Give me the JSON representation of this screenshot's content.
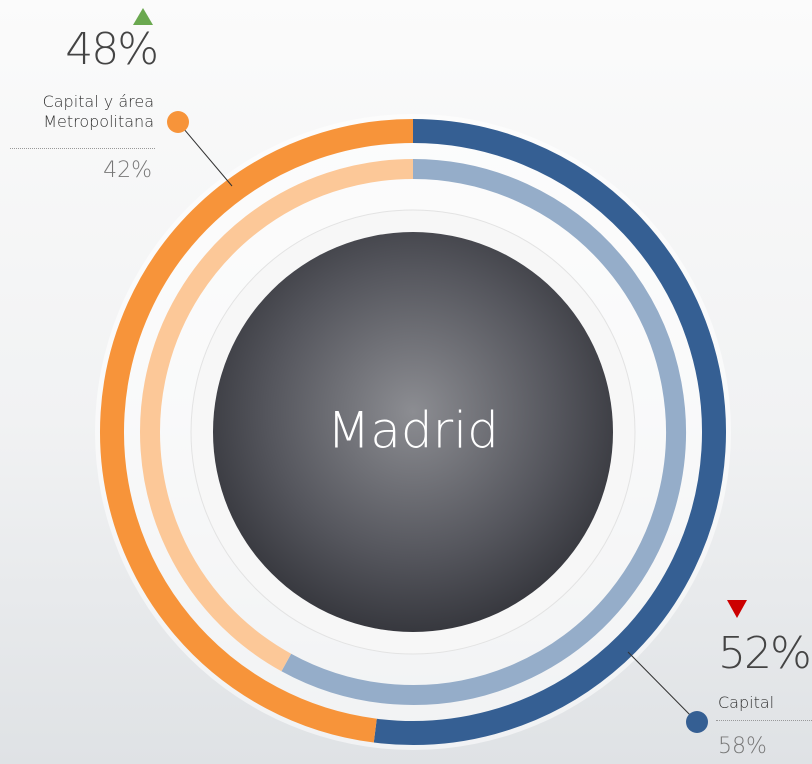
{
  "chart_data": {
    "type": "donut",
    "title": "Madrid",
    "categories": [
      "Capital",
      "Capital y área Metropolitana"
    ],
    "colors": [
      "#355f93",
      "#f7943a"
    ],
    "rings": [
      {
        "values": [
          52,
          48
        ],
        "value_labels": [
          "52%",
          "48%"
        ],
        "colors": [
          "#355f93",
          "#f7943a"
        ]
      },
      {
        "values": [
          58,
          42
        ],
        "value_labels": [
          "58%",
          "42%"
        ],
        "colors": [
          "#95adc9",
          "#fcc898"
        ]
      }
    ]
  }
}
